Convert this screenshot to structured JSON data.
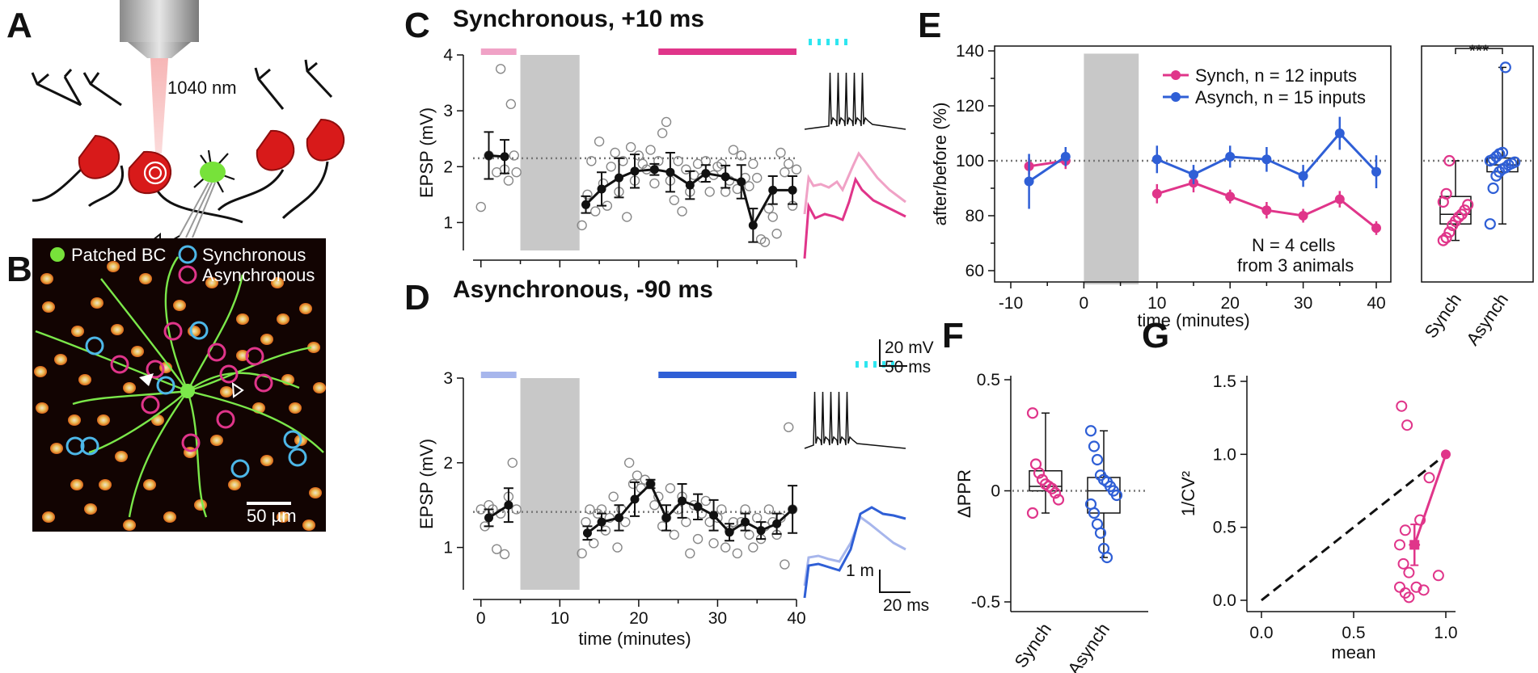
{
  "colors": {
    "synch": "#e0358a",
    "synch_light": "#f0a2c6",
    "asynch": "#2f5fd6",
    "asynch_light": "#a7b6ec",
    "stim": "#2ee6f0",
    "bc_green": "#77e23a",
    "neuron_red": "#d81a1a"
  },
  "panels": {
    "A": {
      "label": "A",
      "laser": "1040 nm"
    },
    "B": {
      "label": "B",
      "legend": [
        "Patched BC",
        "Synchronous",
        "Asynchronous"
      ],
      "scalebar": "50 µm"
    },
    "C": {
      "label": "C",
      "title": "Synchronous, +10 ms"
    },
    "D": {
      "label": "D",
      "title": "Asynchronous, -90 ms",
      "scale_v": "20 mV",
      "scale_t": "50 ms",
      "scale_v2": "1 m",
      "scale_t2": "20 ms"
    },
    "E": {
      "label": "E",
      "note1": "N = 4 cells",
      "note2": "from 3 animals",
      "sig": "***"
    },
    "F": {
      "label": "F"
    },
    "G": {
      "label": "G"
    }
  },
  "chart_data": [
    {
      "id": "C",
      "type": "scatter",
      "title": "Synchronous, +10 ms",
      "xlabel": "",
      "ylabel": "EPSP (mV)",
      "xlim": [
        -1,
        40
      ],
      "ylim": [
        0.5,
        4
      ],
      "yticks": [
        "1",
        "2",
        "3",
        "4"
      ],
      "baseline": 2.15,
      "shaded": [
        5,
        12.5
      ],
      "bars": [
        [
          0,
          4.5,
          "light"
        ],
        [
          22.5,
          40,
          "full"
        ]
      ],
      "mean": {
        "x": [
          1,
          3,
          13.3,
          15.3,
          17.5,
          19.5,
          22,
          24,
          26.5,
          28.5,
          31,
          33,
          34.5,
          37,
          39.5
        ],
        "y": [
          2.2,
          2.18,
          1.32,
          1.6,
          1.8,
          1.92,
          1.95,
          1.9,
          1.67,
          1.88,
          1.82,
          1.73,
          0.95,
          1.58,
          1.58
        ],
        "err": [
          0.42,
          0.3,
          0.15,
          0.3,
          0.35,
          0.3,
          0.1,
          0.35,
          0.25,
          0.15,
          0.2,
          0.3,
          0.3,
          0.25,
          0.25
        ],
        "split": 2
      },
      "open": [
        [
          0,
          1.28
        ],
        [
          1,
          2.2
        ],
        [
          2,
          1.9
        ],
        [
          2.5,
          3.75
        ],
        [
          3,
          1.95
        ],
        [
          3.5,
          1.75
        ],
        [
          3.8,
          3.12
        ],
        [
          4.2,
          2.2
        ],
        [
          4.5,
          1.9
        ],
        [
          12.8,
          0.95
        ],
        [
          13.5,
          1.5
        ],
        [
          14,
          2.1
        ],
        [
          14.5,
          1.2
        ],
        [
          15,
          2.45
        ],
        [
          15.5,
          1.7
        ],
        [
          16,
          1.3
        ],
        [
          16.5,
          2.0
        ],
        [
          17,
          2.25
        ],
        [
          17.5,
          1.55
        ],
        [
          18,
          2.1
        ],
        [
          18.5,
          1.1
        ],
        [
          19,
          2.35
        ],
        [
          19.5,
          1.75
        ],
        [
          20,
          2.2
        ],
        [
          20.5,
          2.05
        ],
        [
          21,
          1.95
        ],
        [
          21.5,
          2.3
        ],
        [
          22,
          1.7
        ],
        [
          22.5,
          2.1
        ],
        [
          23,
          2.6
        ],
        [
          23.5,
          2.8
        ],
        [
          24,
          1.75
        ],
        [
          24.5,
          1.4
        ],
        [
          25,
          2.1
        ],
        [
          25.5,
          1.2
        ],
        [
          26,
          1.95
        ],
        [
          26.5,
          1.55
        ],
        [
          27,
          1.85
        ],
        [
          27.5,
          2.05
        ],
        [
          28,
          1.8
        ],
        [
          28.5,
          2.1
        ],
        [
          29,
          1.55
        ],
        [
          29.5,
          1.85
        ],
        [
          30,
          2.0
        ],
        [
          30.5,
          2.05
        ],
        [
          31,
          1.55
        ],
        [
          31.5,
          1.75
        ],
        [
          32,
          2.3
        ],
        [
          32.5,
          1.6
        ],
        [
          33,
          2.2
        ],
        [
          33.5,
          1.8
        ],
        [
          34,
          1.65
        ],
        [
          34.5,
          2.05
        ],
        [
          35,
          1.8
        ],
        [
          35.5,
          0.7
        ],
        [
          36,
          0.65
        ],
        [
          36.5,
          1.25
        ],
        [
          37,
          1.1
        ],
        [
          37.5,
          0.8
        ],
        [
          38,
          2.25
        ],
        [
          38.5,
          1.9
        ],
        [
          39,
          2.05
        ],
        [
          39.5,
          1.3
        ],
        [
          40,
          1.95
        ]
      ]
    },
    {
      "id": "D",
      "type": "scatter",
      "title": "Asynchronous, -90 ms",
      "xlabel": "time (minutes)",
      "ylabel": "EPSP (mV)",
      "xlim": [
        -1,
        40
      ],
      "ylim": [
        0.5,
        3
      ],
      "xticks": [
        "0",
        "10",
        "20",
        "30",
        "40"
      ],
      "yticks": [
        "1",
        "2",
        "3"
      ],
      "baseline": 1.42,
      "shaded": [
        5,
        12.5
      ],
      "bars": [
        [
          0,
          4.5,
          "light"
        ],
        [
          22.5,
          40,
          "full"
        ]
      ],
      "mean": {
        "x": [
          1,
          3.5,
          13.5,
          15.3,
          17.5,
          19.5,
          21.5,
          23.5,
          25.5,
          27.5,
          29.5,
          31.5,
          33.5,
          35.5,
          37.5,
          39.5
        ],
        "y": [
          1.35,
          1.5,
          1.17,
          1.3,
          1.35,
          1.57,
          1.75,
          1.35,
          1.55,
          1.48,
          1.38,
          1.18,
          1.3,
          1.2,
          1.28,
          1.45
        ],
        "err": [
          0.1,
          0.2,
          0.08,
          0.1,
          0.15,
          0.2,
          0.05,
          0.15,
          0.2,
          0.15,
          0.18,
          0.1,
          0.1,
          0.1,
          0.12,
          0.28
        ],
        "split": 2
      },
      "open": [
        [
          0,
          1.45
        ],
        [
          0.5,
          1.25
        ],
        [
          1,
          1.5
        ],
        [
          1.5,
          1.45
        ],
        [
          2,
          0.98
        ],
        [
          2.5,
          1.4
        ],
        [
          3,
          0.92
        ],
        [
          3.5,
          1.6
        ],
        [
          4,
          2.0
        ],
        [
          4.5,
          1.45
        ],
        [
          12.8,
          0.93
        ],
        [
          13.3,
          1.3
        ],
        [
          13.8,
          1.45
        ],
        [
          14.3,
          1.05
        ],
        [
          14.8,
          1.4
        ],
        [
          15.3,
          1.45
        ],
        [
          15.8,
          1.2
        ],
        [
          16.3,
          1.35
        ],
        [
          16.8,
          1.6
        ],
        [
          17.3,
          1.0
        ],
        [
          17.8,
          1.45
        ],
        [
          18.3,
          1.3
        ],
        [
          18.8,
          2.0
        ],
        [
          19.3,
          1.75
        ],
        [
          19.8,
          1.85
        ],
        [
          20.3,
          1.7
        ],
        [
          20.8,
          1.8
        ],
        [
          21.5,
          1.75
        ],
        [
          22,
          1.5
        ],
        [
          22.5,
          1.6
        ],
        [
          23,
          1.25
        ],
        [
          23.5,
          1.35
        ],
        [
          24,
          1.7
        ],
        [
          24.5,
          1.15
        ],
        [
          25,
          1.45
        ],
        [
          25.5,
          1.6
        ],
        [
          26,
          1.3
        ],
        [
          26.5,
          0.93
        ],
        [
          27,
          1.5
        ],
        [
          27.5,
          1.1
        ],
        [
          28,
          1.4
        ],
        [
          28.5,
          1.55
        ],
        [
          29,
          1.3
        ],
        [
          29.5,
          1.05
        ],
        [
          30,
          1.35
        ],
        [
          30.5,
          1.45
        ],
        [
          31,
          1.0
        ],
        [
          31.5,
          1.2
        ],
        [
          32,
          1.3
        ],
        [
          32.5,
          0.93
        ],
        [
          33,
          1.3
        ],
        [
          33.5,
          1.45
        ],
        [
          34,
          1.15
        ],
        [
          34.5,
          1.0
        ],
        [
          35,
          1.35
        ],
        [
          35.5,
          1.1
        ],
        [
          36,
          1.25
        ],
        [
          36.5,
          1.45
        ],
        [
          37,
          1.3
        ],
        [
          37.5,
          1.15
        ],
        [
          38,
          1.35
        ],
        [
          38.5,
          0.8
        ],
        [
          39,
          2.42
        ],
        [
          39.5,
          1.45
        ]
      ]
    },
    {
      "id": "E",
      "type": "line",
      "xlabel": "time (minutes)",
      "ylabel": "after/before (%)",
      "xlim": [
        -12,
        42
      ],
      "ylim": [
        55,
        140
      ],
      "xticks": [
        "-10",
        "0",
        "10",
        "20",
        "30",
        "40"
      ],
      "yticks": [
        "60",
        "80",
        "100",
        "120",
        "140"
      ],
      "baseline": 100,
      "shaded": [
        0,
        7.5
      ],
      "series": [
        {
          "name": "Synch,  n = 12 inputs",
          "color": "synch",
          "x": [
            -7.5,
            -2.5,
            10,
            15,
            20,
            25,
            30,
            35,
            40
          ],
          "y": [
            98,
            100,
            88,
            92,
            87,
            82,
            80,
            86,
            75.5
          ],
          "err": [
            3,
            3,
            3.5,
            3.5,
            2.5,
            3,
            2.5,
            3,
            2.5
          ]
        },
        {
          "name": "Asynch,  n = 15 inputs",
          "color": "asynch",
          "x": [
            -7.5,
            -2.5,
            10,
            15,
            20,
            25,
            30,
            35,
            40
          ],
          "y": [
            92.5,
            101.5,
            100.5,
            95,
            101.5,
            100.5,
            94.5,
            110,
            96
          ],
          "err": [
            10,
            3.5,
            5,
            3.5,
            4,
            4.5,
            4,
            6,
            6
          ]
        }
      ]
    },
    {
      "id": "E-box",
      "type": "box",
      "categories": [
        "Synch",
        "Asynch"
      ],
      "ylim": [
        55,
        140
      ],
      "boxes": [
        {
          "name": "Synch",
          "color": "synch",
          "min": 71,
          "q1": 77,
          "median": 80.5,
          "q3": 87,
          "max": 100,
          "points": [
            71,
            72,
            74,
            76.5,
            78,
            79.5,
            80.5,
            82,
            84,
            85,
            88,
            100
          ]
        },
        {
          "name": "Asynch",
          "color": "asynch",
          "min": 77,
          "q1": 96,
          "median": 98.5,
          "q3": 101,
          "max": 134,
          "points": [
            77,
            90,
            94.5,
            96,
            97,
            97.5,
            98.5,
            99,
            99.5,
            100,
            100.5,
            101.5,
            102.5,
            103,
            134
          ]
        }
      ]
    },
    {
      "id": "F",
      "type": "box",
      "ylabel": "ΔPPR",
      "categories": [
        "Synch",
        "Asynch"
      ],
      "ylim": [
        -0.55,
        0.5
      ],
      "yticks": [
        "0.5",
        "0",
        "-0.5"
      ],
      "baseline": 0,
      "boxes": [
        {
          "name": "Synch",
          "color": "synch",
          "min": -0.1,
          "q1": 0.0,
          "median": 0.02,
          "q3": 0.09,
          "max": 0.35,
          "points": [
            0.35,
            0.12,
            0.08,
            0.05,
            0.03,
            0.02,
            0.01,
            -0.01,
            -0.04,
            -0.1
          ]
        },
        {
          "name": "Asynch",
          "color": "asynch",
          "min": -0.3,
          "q1": -0.1,
          "median": 0.0,
          "q3": 0.06,
          "max": 0.27,
          "points": [
            0.27,
            0.2,
            0.14,
            0.07,
            0.05,
            0.04,
            0.02,
            0.0,
            -0.02,
            -0.06,
            -0.1,
            -0.15,
            -0.19,
            -0.26,
            -0.3
          ]
        }
      ]
    },
    {
      "id": "G",
      "type": "scatter",
      "xlabel": "mean",
      "ylabel": "1/CV²",
      "xlim": [
        -0.08,
        1.05
      ],
      "ylim": [
        -0.08,
        1.5
      ],
      "xticks": [
        "0.0",
        "0.5",
        "1.0"
      ],
      "yticks": [
        "0.0",
        "0.5",
        "1.0",
        "1.5"
      ],
      "identity": [
        [
          0,
          0
        ],
        [
          1,
          1
        ]
      ],
      "ref": [
        1.0,
        1.0
      ],
      "mean": {
        "x": 0.83,
        "y": 0.38,
        "xerr": 0.03,
        "yerr": 0.14
      },
      "points": [
        [
          0.76,
          1.33
        ],
        [
          0.79,
          1.2
        ],
        [
          0.91,
          0.84
        ],
        [
          0.78,
          0.48
        ],
        [
          0.86,
          0.55
        ],
        [
          0.75,
          0.38
        ],
        [
          0.77,
          0.25
        ],
        [
          0.8,
          0.19
        ],
        [
          0.75,
          0.09
        ],
        [
          0.78,
          0.05
        ],
        [
          0.8,
          0.02
        ],
        [
          0.84,
          0.09
        ],
        [
          0.88,
          0.07
        ],
        [
          0.96,
          0.17
        ]
      ]
    }
  ]
}
